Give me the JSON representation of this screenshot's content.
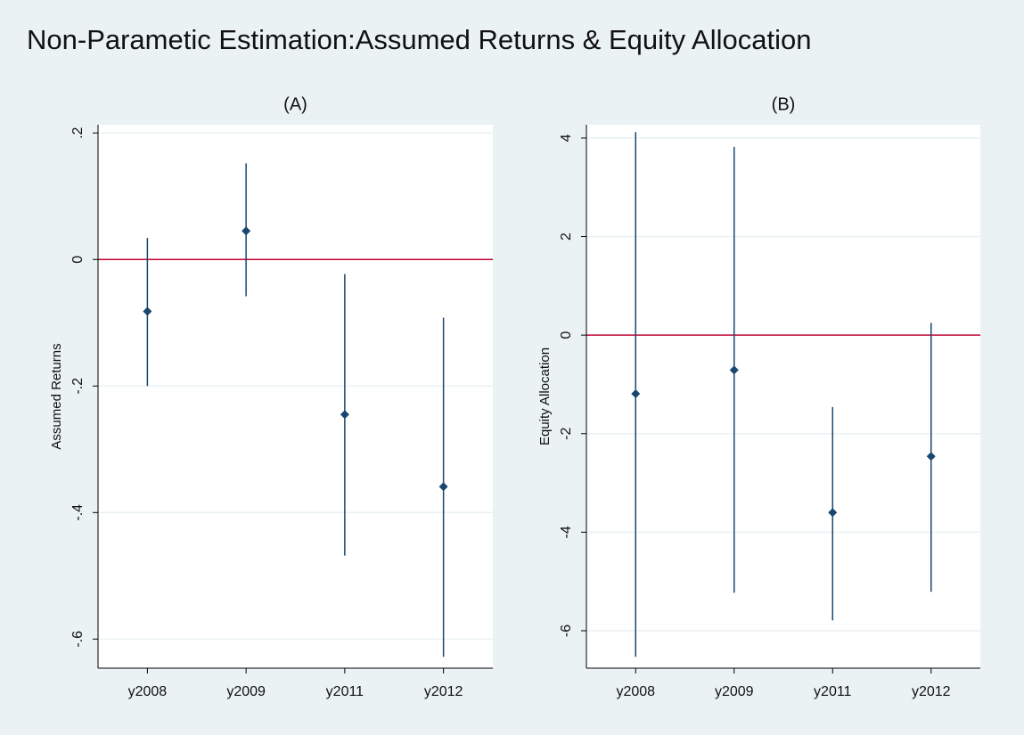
{
  "title": "Non-Parametic Estimation:Assumed Returns & Equity Allocation",
  "chart_data": [
    {
      "type": "errorbar",
      "title": "(A)",
      "y_label": "Assumed Returns",
      "categories": [
        "y2008",
        "y2009",
        "y2011",
        "y2012"
      ],
      "values": [
        -0.082,
        0.045,
        -0.245,
        -0.359
      ],
      "lower": [
        -0.2,
        -0.058,
        -0.468,
        -0.628
      ],
      "upper": [
        0.034,
        0.152,
        -0.023,
        -0.092
      ],
      "color": "#1a476f",
      "refline": 0,
      "refline_color": "#c10534",
      "ylim": [
        -0.646,
        0.213
      ],
      "yticks": [
        {
          "value": -0.6,
          "label": "-.6"
        },
        {
          "value": -0.4,
          "label": "-.4"
        },
        {
          "value": -0.2,
          "label": "-.2"
        },
        0,
        {
          "value": 0.2,
          "label": ".2"
        }
      ],
      "grid": true
    },
    {
      "type": "errorbar",
      "title": "(B)",
      "y_label": "Equity Allocation",
      "categories": [
        "y2008",
        "y2009",
        "y2011",
        "y2012"
      ],
      "values": [
        -1.19,
        -0.71,
        -3.6,
        -2.46
      ],
      "lower": [
        -6.53,
        -5.23,
        -5.79,
        -5.21
      ],
      "upper": [
        4.12,
        3.82,
        -1.46,
        0.25
      ],
      "color": "#1a476f",
      "refline": 0,
      "refline_color": "#c10534",
      "ylim": [
        -6.76,
        4.27
      ],
      "yticks": [
        -6,
        -4,
        -2,
        0,
        2,
        4
      ],
      "grid": true
    }
  ]
}
